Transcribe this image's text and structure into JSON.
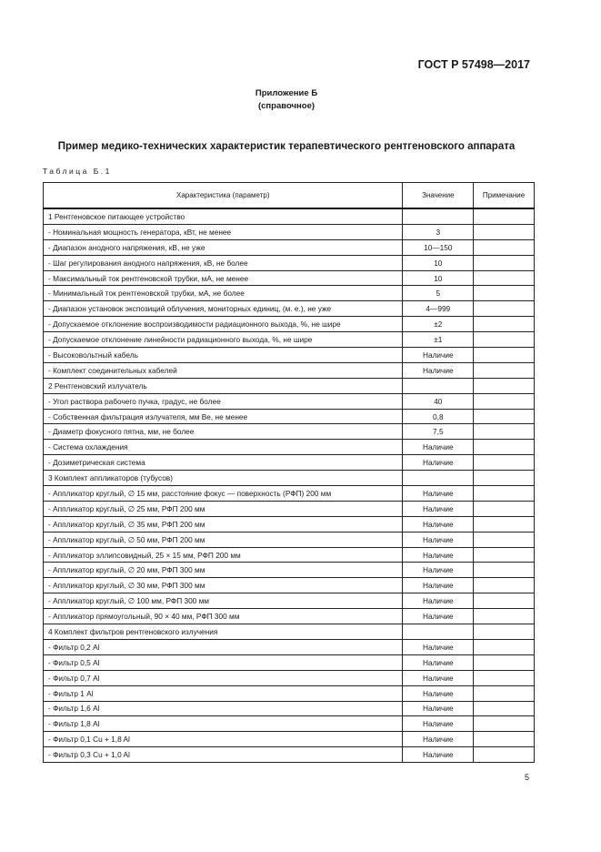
{
  "header": {
    "doc_code": "ГОСТ Р 57498—2017"
  },
  "annex": {
    "title": "Приложение Б",
    "subtitle": "(справочное)"
  },
  "heading": "Пример медико-технических характеристик терапевтического рентгеновского аппарата",
  "table": {
    "label": "Таблица Б.1",
    "columns": [
      "Характеристика (параметр)",
      "Значение",
      "Примечание"
    ],
    "rows": [
      {
        "param": "1  Рентгеновское питающее устройство",
        "value": "",
        "note": ""
      },
      {
        "param": "- Номинальная мощность генератора, кВт, не менее",
        "value": "3",
        "note": ""
      },
      {
        "param": "- Диапазон анодного напряжения, кВ, не уже",
        "value": "10—150",
        "note": ""
      },
      {
        "param": "- Шаг регулирования анодного напряжения, кВ, не более",
        "value": "10",
        "note": ""
      },
      {
        "param": "- Максимальный ток рентгеновской трубки, мА, не менее",
        "value": "10",
        "note": ""
      },
      {
        "param": "- Минимальный ток рентгеновской трубки, мА, не более",
        "value": "5",
        "note": ""
      },
      {
        "param": "- Диапазон установок экспозиций облучения, мониторных единиц, (м. е.), не уже",
        "value": "4—999",
        "note": ""
      },
      {
        "param": "- Допускаемое отклонение воспроизводимости радиационного выхода, %, не шире",
        "value": "±2",
        "note": ""
      },
      {
        "param": "- Допускаемое отклонение линейности радиационного выхода, %, не шире",
        "value": "±1",
        "note": ""
      },
      {
        "param": "- Высоковольтный кабель",
        "value": "Наличие",
        "note": ""
      },
      {
        "param": "- Комплект соединительных кабелей",
        "value": "Наличие",
        "note": ""
      },
      {
        "param": "2  Рентгеновский излучатель",
        "value": "",
        "note": ""
      },
      {
        "param": "- Угол раствора рабочего пучка, градус, не более",
        "value": "40",
        "note": ""
      },
      {
        "param": "- Собственная фильтрация излучателя, мм Ве, не менее",
        "value": "0,8",
        "note": ""
      },
      {
        "param": "- Диаметр фокусного пятна, мм, не более",
        "value": "7,5",
        "note": ""
      },
      {
        "param": "- Система охлаждения",
        "value": "Наличие",
        "note": ""
      },
      {
        "param": "- Дозиметрическая система",
        "value": "Наличие",
        "note": ""
      },
      {
        "param": "3  Комплект аппликаторов (тубусов)",
        "value": "",
        "note": ""
      },
      {
        "param": "- Аппликатор круглый, ∅ 15 мм, расстояние фокус — поверхность (РФП) 200 мм",
        "value": "Наличие",
        "note": ""
      },
      {
        "param": "- Аппликатор круглый, ∅ 25 мм, РФП 200 мм",
        "value": "Наличие",
        "note": ""
      },
      {
        "param": "- Аппликатор круглый, ∅ 35 мм, РФП 200 мм",
        "value": "Наличие",
        "note": ""
      },
      {
        "param": "- Аппликатор круглый, ∅ 50 мм, РФП 200 мм",
        "value": "Наличие",
        "note": ""
      },
      {
        "param": "- Аппликатор эллипсовидный, 25 × 15 мм, РФП 200 мм",
        "value": "Наличие",
        "note": ""
      },
      {
        "param": "- Аппликатор круглый, ∅ 20 мм, РФП 300 мм",
        "value": "Наличие",
        "note": ""
      },
      {
        "param": "- Аппликатор круглый, ∅ 30 мм, РФП 300 мм",
        "value": "Наличие",
        "note": ""
      },
      {
        "param": "- Аппликатор круглый, ∅ 100 мм, РФП 300 мм",
        "value": "Наличие",
        "note": ""
      },
      {
        "param": "- Аппликатор прямоугольный, 90 × 40 мм, РФП 300 мм",
        "value": "Наличие",
        "note": ""
      },
      {
        "param": "4  Комплект фильтров рентгеновского излучения",
        "value": "",
        "note": ""
      },
      {
        "param": "- Фильтр 0,2 Al",
        "value": "Наличие",
        "note": ""
      },
      {
        "param": "- Фильтр 0,5 Al",
        "value": "Наличие",
        "note": ""
      },
      {
        "param": "- Фильтр 0,7 Al",
        "value": "Наличие",
        "note": ""
      },
      {
        "param": "- Фильтр 1 Al",
        "value": "Наличие",
        "note": ""
      },
      {
        "param": "- Фильтр 1,6 Al",
        "value": "Наличие",
        "note": ""
      },
      {
        "param": "- Фильтр 1,8 Al",
        "value": "Наличие",
        "note": ""
      },
      {
        "param": "- Фильтр 0,1 Cu + 1,8 Al",
        "value": "Наличие",
        "note": ""
      },
      {
        "param": "- Фильтр 0,3 Cu + 1,0 Al",
        "value": "Наличие",
        "note": ""
      }
    ]
  },
  "footer": {
    "page_number": "5"
  }
}
